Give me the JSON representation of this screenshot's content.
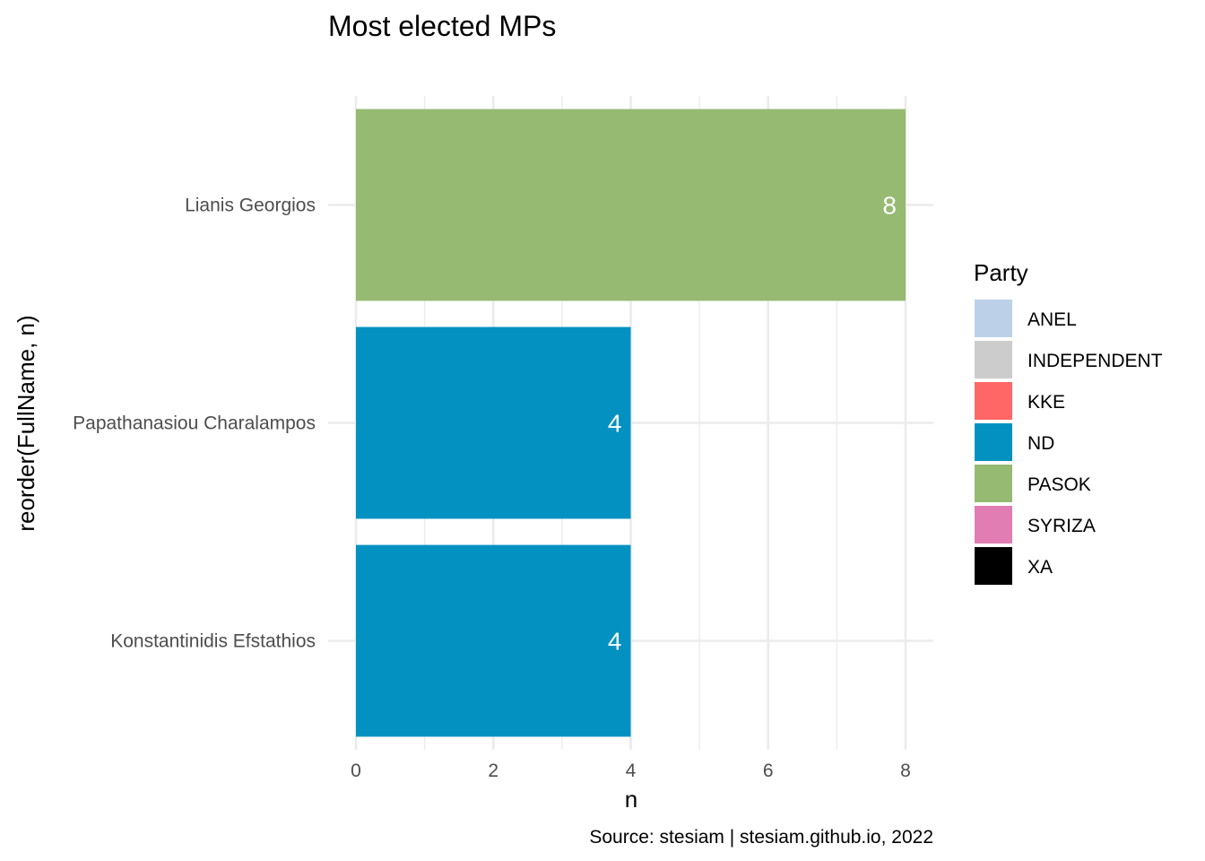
{
  "chart_data": {
    "type": "bar",
    "orientation": "horizontal",
    "title": "Most elected MPs",
    "xlabel": "n",
    "ylabel": "reorder(FullName, n)",
    "caption": "Source: stesiam | stesiam.github.io, 2022",
    "categories": [
      "Konstantinidis Efstathios",
      "Papathanasiou Charalampos",
      "Lianis Georgios"
    ],
    "values": [
      4,
      4,
      8
    ],
    "bar_party": [
      "ND",
      "ND",
      "PASOK"
    ],
    "xlim": [
      0,
      8.4
    ],
    "x_ticks": [
      0,
      2,
      4,
      6,
      8
    ],
    "grid": true,
    "legend": {
      "title": "Party",
      "placement": "right",
      "items": [
        {
          "label": "ANEL",
          "color": "#bcd1e8"
        },
        {
          "label": "INDEPENDENT",
          "color": "#cccccc"
        },
        {
          "label": "KKE",
          "color": "#ff6666"
        },
        {
          "label": "ND",
          "color": "#0391c2"
        },
        {
          "label": "PASOK",
          "color": "#96ba71"
        },
        {
          "label": "SYRIZA",
          "color": "#e27db3"
        },
        {
          "label": "XA",
          "color": "#000000"
        }
      ]
    }
  }
}
